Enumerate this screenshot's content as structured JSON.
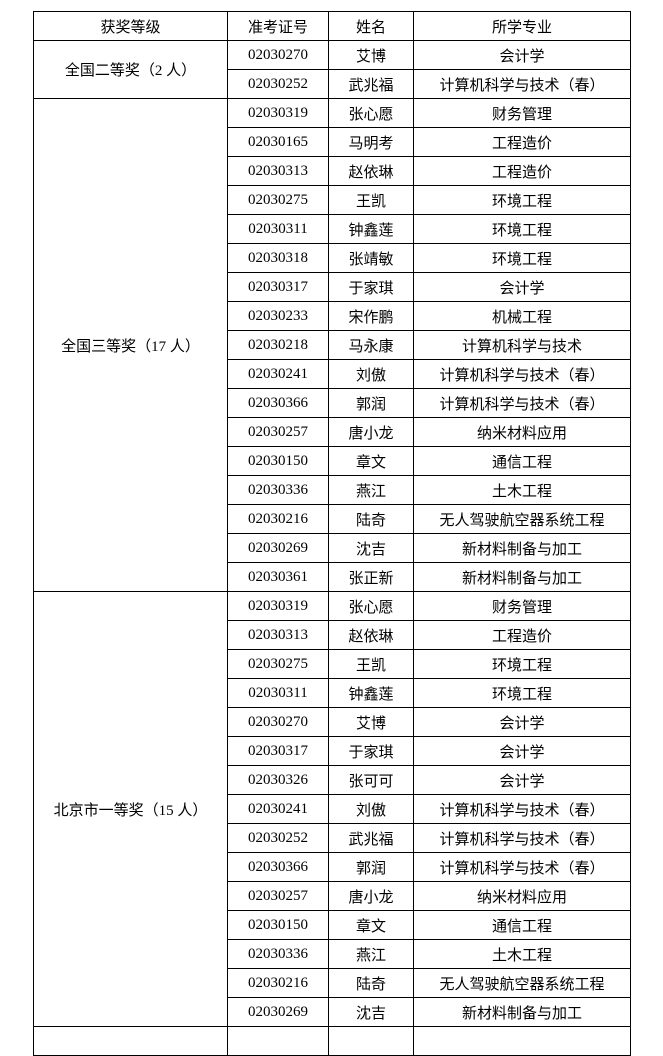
{
  "headers": [
    "获奖等级",
    "准考证号",
    "姓名",
    "所学专业"
  ],
  "groups": [
    {
      "level": "全国二等奖（2 人）",
      "rows": [
        [
          "02030270",
          "艾博",
          "会计学"
        ],
        [
          "02030252",
          "武兆福",
          "计算机科学与技术（春）"
        ]
      ]
    },
    {
      "level": "全国三等奖（17 人）",
      "rows": [
        [
          "02030319",
          "张心愿",
          "财务管理"
        ],
        [
          "02030165",
          "马明考",
          "工程造价"
        ],
        [
          "02030313",
          "赵依琳",
          "工程造价"
        ],
        [
          "02030275",
          "王凯",
          "环境工程"
        ],
        [
          "02030311",
          "钟鑫莲",
          "环境工程"
        ],
        [
          "02030318",
          "张靖敏",
          "环境工程"
        ],
        [
          "02030317",
          "于家琪",
          "会计学"
        ],
        [
          "02030233",
          "宋作鹏",
          "机械工程"
        ],
        [
          "02030218",
          "马永康",
          "计算机科学与技术"
        ],
        [
          "02030241",
          "刘傲",
          "计算机科学与技术（春）"
        ],
        [
          "02030366",
          "郭润",
          "计算机科学与技术（春）"
        ],
        [
          "02030257",
          "唐小龙",
          "纳米材料应用"
        ],
        [
          "02030150",
          "章文",
          "通信工程"
        ],
        [
          "02030336",
          "燕江",
          "土木工程"
        ],
        [
          "02030216",
          "陆奇",
          "无人驾驶航空器系统工程"
        ],
        [
          "02030269",
          "沈吉",
          "新材料制备与加工"
        ],
        [
          "02030361",
          "张正新",
          "新材料制备与加工"
        ]
      ]
    },
    {
      "level": "北京市一等奖（15 人）",
      "rows": [
        [
          "02030319",
          "张心愿",
          "财务管理"
        ],
        [
          "02030313",
          "赵依琳",
          "工程造价"
        ],
        [
          "02030275",
          "王凯",
          "环境工程"
        ],
        [
          "02030311",
          "钟鑫莲",
          "环境工程"
        ],
        [
          "02030270",
          "艾博",
          "会计学"
        ],
        [
          "02030317",
          "于家琪",
          "会计学"
        ],
        [
          "02030326",
          "张可可",
          "会计学"
        ],
        [
          "02030241",
          "刘傲",
          "计算机科学与技术（春）"
        ],
        [
          "02030252",
          "武兆福",
          "计算机科学与技术（春）"
        ],
        [
          "02030366",
          "郭润",
          "计算机科学与技术（春）"
        ],
        [
          "02030257",
          "唐小龙",
          "纳米材料应用"
        ],
        [
          "02030150",
          "章文",
          "通信工程"
        ],
        [
          "02030336",
          "燕江",
          "土木工程"
        ],
        [
          "02030216",
          "陆奇",
          "无人驾驶航空器系统工程"
        ],
        [
          "02030269",
          "沈吉",
          "新材料制备与加工"
        ]
      ]
    }
  ]
}
